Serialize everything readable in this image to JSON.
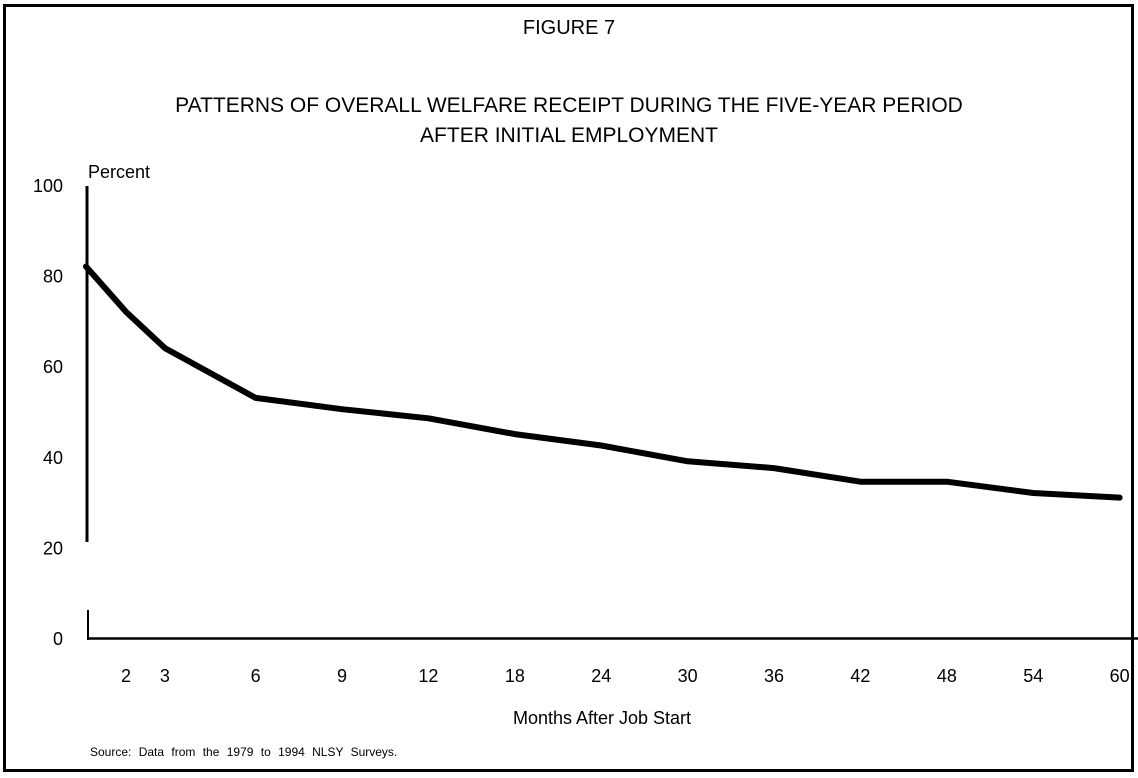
{
  "figure_label": "FIGURE 7",
  "title_line1": "PATTERNS OF OVERALL WELFARE RECEIPT DURING THE FIVE-YEAR PERIOD",
  "title_line2": "AFTER INITIAL EMPLOYMENT",
  "source": "Source:   Data from the 1979 to 1994 NLSY Surveys.",
  "colors": {
    "line": "#000000",
    "background": "#ffffff"
  },
  "chart_data": {
    "type": "line",
    "ylabel": "Percent",
    "xlabel": "Months After Job Start",
    "ylim": [
      0,
      100
    ],
    "yticks": [
      100,
      80,
      60,
      40,
      20,
      0
    ],
    "categories": [
      "1",
      "2",
      "3",
      "6",
      "9",
      "12",
      "18",
      "24",
      "30",
      "36",
      "42",
      "48",
      "54",
      "60"
    ],
    "tick_labels": [
      "",
      "2",
      "3",
      "6",
      "9",
      "12",
      "18",
      "24",
      "30",
      "36",
      "42",
      "48",
      "54",
      "60"
    ],
    "x_positions_ordinal": [
      0,
      0.95,
      1.85,
      3.95,
      5.95,
      7.95,
      9.95,
      11.95,
      13.95,
      15.95,
      17.95,
      19.95,
      21.95,
      23.95
    ],
    "series": [
      {
        "values": [
          82,
          72,
          64,
          53,
          50.5,
          48.5,
          45,
          42.5,
          39,
          37.5,
          34.5,
          34.5,
          32,
          31
        ]
      }
    ],
    "grid": false,
    "legend": "none"
  }
}
